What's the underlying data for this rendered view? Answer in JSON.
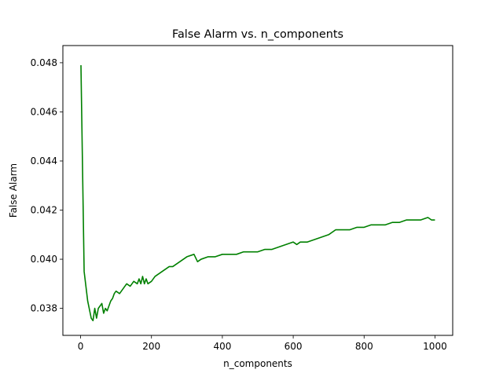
{
  "chart_data": {
    "type": "line",
    "title": "False Alarm vs. n_components",
    "xlabel": "n_components",
    "ylabel": "False Alarm",
    "xlim": [
      -50,
      1050
    ],
    "ylim": [
      0.0369,
      0.0487
    ],
    "xticks": [
      0,
      200,
      400,
      600,
      800,
      1000
    ],
    "yticks": [
      0.038,
      0.04,
      0.042,
      0.044,
      0.046,
      0.048
    ],
    "xtick_labels": [
      "0",
      "200",
      "400",
      "600",
      "800",
      "1000"
    ],
    "ytick_labels": [
      "0.038",
      "0.040",
      "0.042",
      "0.044",
      "0.046",
      "0.048"
    ],
    "grid": false,
    "series": [
      {
        "color": "#008000",
        "x": [
          1,
          10,
          20,
          30,
          35,
          40,
          45,
          50,
          55,
          60,
          65,
          70,
          75,
          80,
          85,
          90,
          95,
          100,
          110,
          120,
          130,
          140,
          150,
          160,
          165,
          170,
          175,
          180,
          185,
          190,
          200,
          210,
          220,
          230,
          240,
          250,
          260,
          270,
          280,
          290,
          300,
          320,
          330,
          340,
          360,
          380,
          400,
          420,
          440,
          460,
          480,
          500,
          520,
          540,
          560,
          580,
          600,
          610,
          620,
          640,
          660,
          680,
          700,
          720,
          740,
          760,
          780,
          800,
          820,
          840,
          860,
          880,
          900,
          920,
          940,
          960,
          980,
          990,
          1000
        ],
        "y": [
          0.0479,
          0.0395,
          0.0383,
          0.0376,
          0.0375,
          0.038,
          0.0376,
          0.038,
          0.0381,
          0.0382,
          0.0378,
          0.038,
          0.0379,
          0.0381,
          0.0383,
          0.0384,
          0.0386,
          0.0387,
          0.0386,
          0.0388,
          0.039,
          0.0389,
          0.0391,
          0.039,
          0.0392,
          0.039,
          0.0393,
          0.039,
          0.0392,
          0.039,
          0.0391,
          0.0393,
          0.0394,
          0.0395,
          0.0396,
          0.0397,
          0.0397,
          0.0398,
          0.0399,
          0.04,
          0.0401,
          0.0402,
          0.0399,
          0.04,
          0.0401,
          0.0401,
          0.0402,
          0.0402,
          0.0402,
          0.0403,
          0.0403,
          0.0403,
          0.0404,
          0.0404,
          0.0405,
          0.0406,
          0.0407,
          0.0406,
          0.0407,
          0.0407,
          0.0408,
          0.0409,
          0.041,
          0.0412,
          0.0412,
          0.0412,
          0.0413,
          0.0413,
          0.0414,
          0.0414,
          0.0414,
          0.0415,
          0.0415,
          0.0416,
          0.0416,
          0.0416,
          0.0417,
          0.0416,
          0.0416
        ]
      }
    ]
  }
}
